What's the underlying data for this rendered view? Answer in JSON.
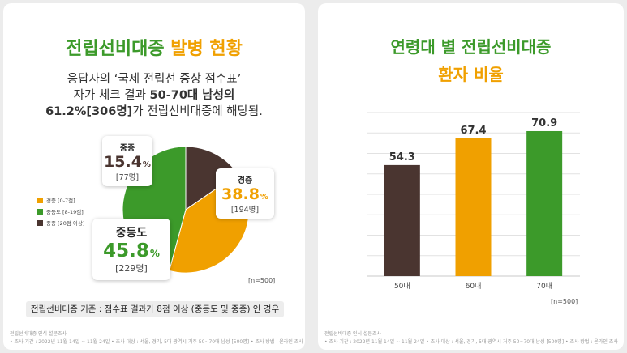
{
  "left": {
    "title_green": "전립선비대증",
    "title_orange": "발병 현황",
    "desc_line1": "응답자의 ‘국제 전립선 증상 점수표’",
    "desc_line2_pre": "자가 체크 결과 ",
    "desc_line2_bold": "50-70대 남성의",
    "desc_line3_bold": "61.2%[306명]",
    "desc_line3_post": "가 전립선비대증에 해당됨.",
    "n_label": "[n=500]",
    "criteria": "전립선비대증 기준 : 점수표 결과가 8점 이상 (중등도 및 중증) 인 경우",
    "footer_line1": "전립선비대증 인식 설문조사",
    "footer_line2": "• 조사 기간 : 2022년 11월 14일 ~ 11월 24일 • 조사 대상 : 서울, 경기, 5대 광역시 거주 50~70대 남성 [500명] • 조사 방법 : 온라인 조사"
  },
  "right": {
    "title_line1": "연령대 별 전립선비대증",
    "title_line2": "환자 비율",
    "n_label": "[n=500]",
    "footer_line1": "전립선비대증 인식 설문조사",
    "footer_line2": "• 조사 기간 : 2022년 11월 14일 ~ 11월 24일 • 조사 대상 : 서울, 경기, 5대 광역시 거주 50~70대 남성 [500명] • 조사 방법 : 온라인 조사"
  },
  "chart_data": [
    {
      "type": "pie",
      "title": "전립선비대증 발병 현황",
      "series": [
        {
          "name": "중증",
          "legend": "중증 [20점 이상]",
          "percent": 15.4,
          "count_label": "[77명]",
          "color": "#4a3530"
        },
        {
          "name": "경증",
          "legend": "경증 [0-7점]",
          "percent": 38.8,
          "count_label": "[194명]",
          "color": "#f0a000"
        },
        {
          "name": "중등도",
          "legend": "중등도 [8-19점]",
          "percent": 45.8,
          "count_label": "[229명]",
          "color": "#3c9a2a"
        }
      ],
      "legend_order": [
        "경증",
        "중등도",
        "중증"
      ],
      "pct_sign": "%",
      "n": "[n=500]"
    },
    {
      "type": "bar",
      "title": "연령대 별 전립선비대증 환자 비율",
      "categories": [
        "50대",
        "60대",
        "70대"
      ],
      "values": [
        54.3,
        67.4,
        70.9
      ],
      "colors": [
        "#4a3530",
        "#f0a000",
        "#3c9a2a"
      ],
      "ylim": [
        0,
        80
      ],
      "grid": true,
      "xlabel": "",
      "ylabel": ""
    }
  ]
}
